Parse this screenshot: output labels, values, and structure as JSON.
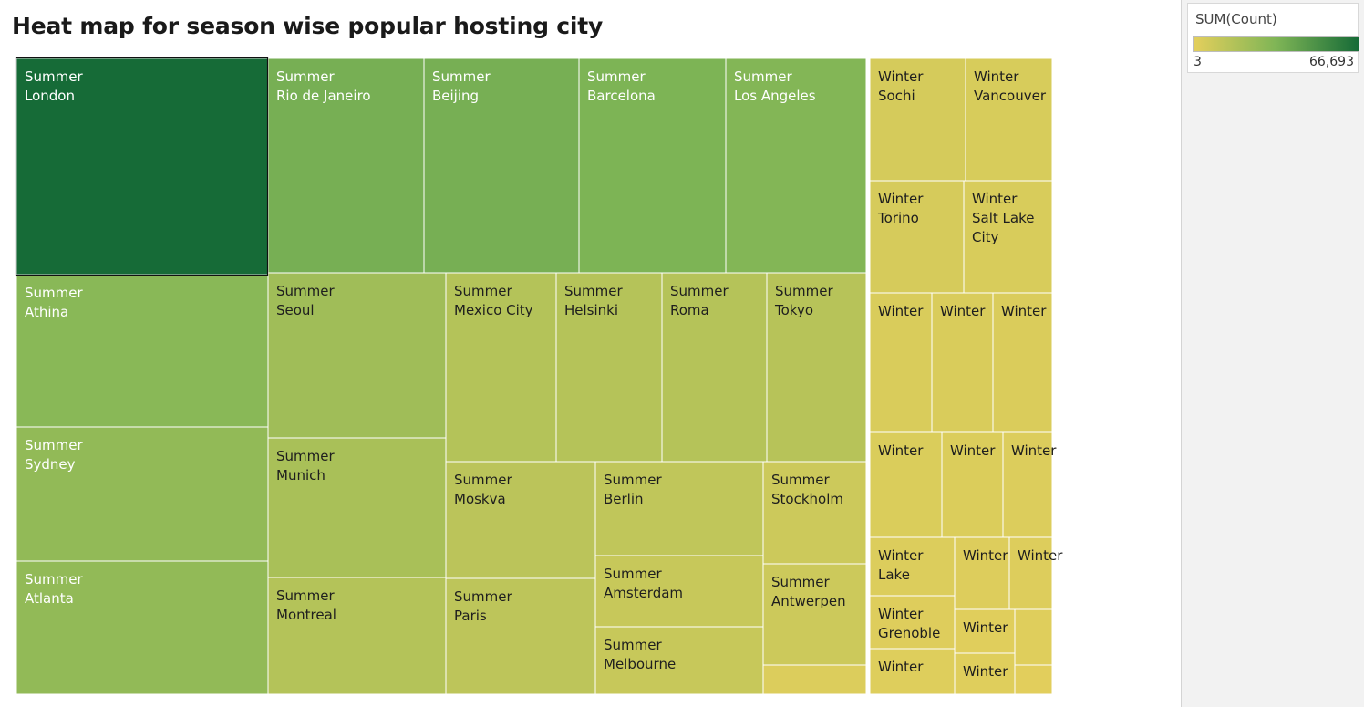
{
  "chart_data": {
    "type": "treemap",
    "title": "Heat map for season wise popular hosting city",
    "color_measure": "SUM(Count)",
    "color_range": [
      3,
      66693
    ],
    "color_scale": [
      "#e4cf5c",
      "#7fb556",
      "#166b37"
    ],
    "tiles": [
      {
        "season": "Summer",
        "city": "London",
        "value": 66693
      },
      {
        "season": "Summer",
        "city": "Rio de Janeiro",
        "value": 36000
      },
      {
        "season": "Summer",
        "city": "Beijing",
        "value": 36000
      },
      {
        "season": "Summer",
        "city": "Barcelona",
        "value": 34000
      },
      {
        "season": "Summer",
        "city": "Los Angeles",
        "value": 32000
      },
      {
        "season": "Summer",
        "city": "Athina",
        "value": 30000
      },
      {
        "season": "Summer",
        "city": "Sydney",
        "value": 27000
      },
      {
        "season": "Summer",
        "city": "Atlanta",
        "value": 27000
      },
      {
        "season": "Summer",
        "city": "Seoul",
        "value": 22500
      },
      {
        "season": "Summer",
        "city": "Munich",
        "value": 19500
      },
      {
        "season": "Summer",
        "city": "Montreal",
        "value": 16000
      },
      {
        "season": "Summer",
        "city": "Mexico City",
        "value": 16000
      },
      {
        "season": "Summer",
        "city": "Helsinki",
        "value": 15500
      },
      {
        "season": "Summer",
        "city": "Roma",
        "value": 15500
      },
      {
        "season": "Summer",
        "city": "Tokyo",
        "value": 15000
      },
      {
        "season": "Summer",
        "city": "Moskva",
        "value": 13500
      },
      {
        "season": "Summer",
        "city": "Paris",
        "value": 13000
      },
      {
        "season": "Summer",
        "city": "Berlin",
        "value": 12000
      },
      {
        "season": "Summer",
        "city": "Amsterdam",
        "value": 9500
      },
      {
        "season": "Summer",
        "city": "Melbourne",
        "value": 9500
      },
      {
        "season": "Summer",
        "city": "Stockholm",
        "value": 8000
      },
      {
        "season": "Summer",
        "city": "Antwerpen",
        "value": 8000
      },
      {
        "season": "Summer",
        "city": "",
        "value": 2500
      },
      {
        "season": "Winter",
        "city": "Sochi",
        "value": 4900
      },
      {
        "season": "Winter",
        "city": "Vancouver",
        "value": 4400
      },
      {
        "season": "Winter",
        "city": "Torino",
        "value": 4600
      },
      {
        "season": "Winter",
        "city": "Salt Lake City",
        "value": 4100
      },
      {
        "season": "Winter",
        "city": "",
        "value": 3600
      },
      {
        "season": "Winter",
        "city": "",
        "value": 3500
      },
      {
        "season": "Winter",
        "city": "",
        "value": 3300
      },
      {
        "season": "Winter",
        "city": "",
        "value": 3200
      },
      {
        "season": "Winter",
        "city": "",
        "value": 3000
      },
      {
        "season": "Winter",
        "city": "",
        "value": 2500
      },
      {
        "season": "Winter",
        "city": "Lake",
        "value": 2700
      },
      {
        "season": "Winter",
        "city": "",
        "value": 2300
      },
      {
        "season": "Winter",
        "city": "",
        "value": 2200
      },
      {
        "season": "Winter",
        "city": "Grenoble",
        "value": 2000
      },
      {
        "season": "Winter",
        "city": "",
        "value": 1900
      },
      {
        "season": "Winter",
        "city": "",
        "value": 1400
      },
      {
        "season": "Winter",
        "city": "",
        "value": 1800
      },
      {
        "season": "Winter",
        "city": "",
        "value": 1500
      },
      {
        "season": "Winter",
        "city": "",
        "value": 800
      }
    ]
  },
  "legend": {
    "title": "SUM(Count)",
    "min_label": "3",
    "max_label": "66,693"
  }
}
